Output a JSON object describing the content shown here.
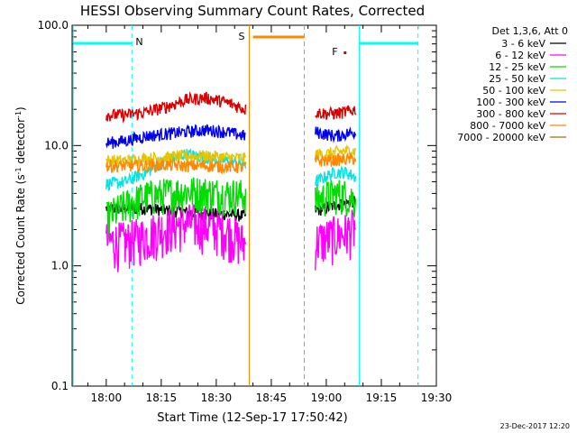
{
  "chart_data": {
    "type": "line",
    "title": "HESSI Observing Summary Count Rates, Corrected",
    "xlabel": "Start Time (12-Sep-17 17:50:42)",
    "ylabel": "Corrected Count Rate (s",
    "ylabel_sup1": "-1",
    "ylabel_mid": " detector",
    "ylabel_sup2": "-1",
    "ylabel_end": ")",
    "yscale": "log",
    "ylim": [
      0.1,
      100.0
    ],
    "xlim": [
      "17:50:42",
      "19:30:00"
    ],
    "x_ticks": [
      "18:00",
      "18:15",
      "18:30",
      "18:45",
      "19:00",
      "19:15",
      "19:30"
    ],
    "y_ticks": [
      "0.1",
      "1.0",
      "10.0",
      "100.0"
    ],
    "legend_title": "Det 1,3,6, Att 0",
    "legend_placement": "right",
    "footer_date": "23-Dec-2017 12:20",
    "markers": [
      {
        "label": "N",
        "color": "#00ffff"
      },
      {
        "label": "S",
        "color": "#ff8800"
      },
      {
        "label": "F",
        "color": "#dd0000"
      }
    ],
    "series": [
      {
        "name": "3 - 6 keV",
        "color": "#000000",
        "segments": [
          {
            "start": "18:00",
            "end": "18:38",
            "level": [
              3.0,
              3.0,
              3.0,
              2.9,
              2.8,
              2.7,
              2.7,
              2.6
            ]
          },
          {
            "start": "18:57",
            "end": "19:08",
            "level": [
              2.9,
              3.0,
              3.2,
              3.3,
              3.5
            ]
          }
        ]
      },
      {
        "name": "6 - 12 keV",
        "color": "#ff00ff",
        "segments": [
          {
            "start": "18:00",
            "end": "18:38",
            "level": [
              1.6,
              1.6,
              1.8,
              2.1,
              2.3,
              2.2,
              2.0,
              1.5
            ]
          },
          {
            "start": "18:57",
            "end": "19:08",
            "level": [
              1.6,
              1.7,
              1.8,
              1.9,
              2.1
            ]
          }
        ]
      },
      {
        "name": "12 - 25 keV",
        "color": "#00dd00",
        "segments": [
          {
            "start": "18:00",
            "end": "18:38",
            "level": [
              2.5,
              3.2,
              3.8,
              4.0,
              4.2,
              4.1,
              4.0,
              3.9
            ]
          },
          {
            "start": "18:57",
            "end": "19:08",
            "level": [
              3.5,
              3.8,
              4.0,
              3.9,
              3.6
            ]
          }
        ]
      },
      {
        "name": "25 - 50 keV",
        "color": "#00e5e5",
        "segments": [
          {
            "start": "18:00",
            "end": "18:38",
            "level": [
              4.8,
              5.0,
              6.0,
              7.5,
              8.5,
              8.0,
              7.5,
              7.0
            ]
          },
          {
            "start": "18:57",
            "end": "19:08",
            "level": [
              5.0,
              5.5,
              6.0,
              6.0,
              5.5
            ]
          }
        ]
      },
      {
        "name": "50 - 100 keV",
        "color": "#e5c500",
        "segments": [
          {
            "start": "18:00",
            "end": "18:38",
            "level": [
              7.5,
              7.5,
              7.8,
              8.0,
              8.2,
              8.2,
              8.0,
              7.8
            ]
          },
          {
            "start": "18:57",
            "end": "19:08",
            "level": [
              8.5,
              8.5,
              8.8,
              9.0,
              9.0
            ]
          }
        ]
      },
      {
        "name": "100 - 300 keV",
        "color": "#0000ee",
        "segments": [
          {
            "start": "18:00",
            "end": "18:38",
            "level": [
              10.5,
              11.0,
              12.0,
              12.5,
              13.0,
              13.5,
              13.0,
              12.0
            ]
          },
          {
            "start": "18:57",
            "end": "19:08",
            "level": [
              13.0,
              12.5,
              12.0,
              12.5,
              13.0
            ]
          }
        ]
      },
      {
        "name": "300 - 800 keV",
        "color": "#dd0000",
        "segments": [
          {
            "start": "18:00",
            "end": "18:38",
            "level": [
              18.0,
              18.0,
              19.0,
              21.0,
              24.0,
              25.0,
              23.0,
              20.0
            ]
          },
          {
            "start": "18:57",
            "end": "19:08",
            "level": [
              19.0,
              18.5,
              18.5,
              19.0,
              20.0
            ]
          }
        ]
      },
      {
        "name": "800 - 7000 keV",
        "color": "#ff8800",
        "segments": [
          {
            "start": "18:00",
            "end": "18:38",
            "level": [
              6.8,
              6.8,
              6.8,
              6.9,
              6.8,
              6.8,
              6.7,
              6.6
            ]
          },
          {
            "start": "18:57",
            "end": "19:08",
            "level": [
              7.5,
              7.5,
              7.6,
              7.7,
              7.8
            ]
          }
        ]
      },
      {
        "name": "7000 - 20000 keV",
        "color": "#a07000",
        "segments": []
      }
    ]
  }
}
